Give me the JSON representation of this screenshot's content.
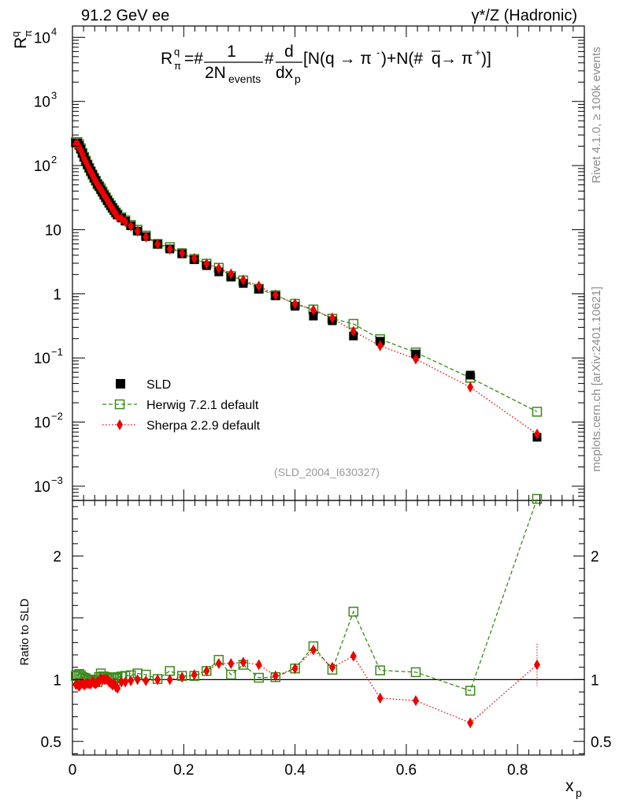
{
  "header": {
    "left": "91.2 GeV ee",
    "right": "γ*/Z (Hadronic)"
  },
  "side_labels": {
    "rivet": "Rivet 4.1.0, ≥ 100k events",
    "mcplots": "mcplots.cern.ch [arXiv:2401.10621]"
  },
  "chart_data": {
    "type": "line",
    "title": "R_π^q = 1/(2N_events) d/dx_p [N(q → π⁻)+N(q̄ → π⁺)]",
    "formula": {
      "lhs": "R",
      "lhs_sup": "q",
      "lhs_sub": "π",
      "eq": "=#",
      "num": "1",
      "den": "2N",
      "den_sub": "events",
      "mid": "#",
      "dnum": "d",
      "dden": "dx",
      "dden_sub": "p",
      "bracket": "[N(q → π",
      "sup1": "-",
      "plus": ")+N(#",
      "qbar": "q",
      "arrow2": " → π",
      "sup2": "+",
      "close": ")]"
    },
    "analysis_tag": "(SLD_2004_I630327)",
    "xlabel": "x",
    "xlabel_sub": "p",
    "ylabel": "R",
    "ylabel_sup": "q",
    "ylabel_sub": "π",
    "ratio_ylabel": "Ratio to SLD",
    "xlim": [
      0,
      0.92
    ],
    "ylim": [
      0.0006,
      15000
    ],
    "yscale": "log",
    "ratio_ylim": [
      0.39,
      2.45
    ],
    "x_ticks": [
      "0",
      "0.2",
      "0.4",
      "0.6",
      "0.8"
    ],
    "x_tick_values": [
      0,
      0.2,
      0.4,
      0.6,
      0.8
    ],
    "y_ticks": [
      {
        "value": 10000,
        "base": "10",
        "exp": "4"
      },
      {
        "value": 1000,
        "base": "10",
        "exp": "3"
      },
      {
        "value": 100,
        "base": "10",
        "exp": "2"
      },
      {
        "value": 10,
        "base": "10",
        "exp": ""
      },
      {
        "value": 1,
        "base": "1",
        "exp": ""
      },
      {
        "value": 0.1,
        "base": "10",
        "exp": "−1"
      },
      {
        "value": 0.01,
        "base": "10",
        "exp": "−2"
      },
      {
        "value": 0.001,
        "base": "10",
        "exp": "−3"
      }
    ],
    "ratio_ticks": [
      {
        "value": 2,
        "label": "2"
      },
      {
        "value": 1,
        "label": "1"
      },
      {
        "value": 0.5,
        "label": "0.5"
      }
    ],
    "legend": {
      "position": "middle-left",
      "entries": [
        "SLD",
        "Herwig 7.2.1 default",
        "Sherpa 2.2.9 default"
      ]
    },
    "x": [
      0.006,
      0.009,
      0.012,
      0.015,
      0.018,
      0.021,
      0.024,
      0.027,
      0.03,
      0.033,
      0.036,
      0.039,
      0.042,
      0.045,
      0.048,
      0.051,
      0.054,
      0.057,
      0.06,
      0.063,
      0.066,
      0.069,
      0.072,
      0.075,
      0.078,
      0.081,
      0.088,
      0.095,
      0.105,
      0.117,
      0.132,
      0.153,
      0.175,
      0.197,
      0.219,
      0.241,
      0.263,
      0.285,
      0.307,
      0.335,
      0.365,
      0.4,
      0.433,
      0.467,
      0.505,
      0.553,
      0.617,
      0.715,
      0.835
    ],
    "series": [
      {
        "name": "SLD",
        "color": "#000000",
        "marker": "filled-square",
        "values": [
          225,
          225,
          205,
          180,
          155,
          135,
          118,
          104,
          92,
          82,
          73,
          65,
          58,
          52,
          47,
          42,
          38.5,
          34.5,
          31.5,
          28.5,
          26,
          23.8,
          21.8,
          20,
          18.4,
          17,
          15.2,
          13.6,
          11.5,
          9.5,
          7.8,
          5.95,
          5.0,
          4.2,
          3.4,
          2.75,
          2.2,
          1.82,
          1.45,
          1.18,
          0.93,
          0.64,
          0.45,
          0.38,
          0.22,
          0.182,
          0.115,
          0.054,
          0.0058
        ]
      },
      {
        "name": "Herwig 7.2.1 default",
        "color": "#3a8a1a",
        "marker": "open-square",
        "line": "dashed",
        "values": [
          232,
          233,
          214,
          186,
          158,
          137,
          119,
          104,
          92,
          81,
          72,
          64,
          58,
          51,
          48,
          44,
          39.5,
          35.3,
          32,
          29,
          26.3,
          24,
          22,
          20.2,
          18.6,
          17.3,
          15.6,
          14.0,
          11.9,
          10.0,
          8.1,
          6.0,
          5.35,
          4.3,
          3.5,
          2.95,
          2.55,
          1.89,
          1.62,
          1.2,
          0.95,
          0.7,
          0.57,
          0.41,
          0.34,
          0.196,
          0.122,
          0.049,
          0.0145
        ]
      },
      {
        "name": "Sherpa 2.2.9 default",
        "color": "#ee0000",
        "marker": "filled-diamond",
        "line": "dotted",
        "values": [
          216,
          216,
          194,
          174,
          150,
          129,
          114,
          101,
          89,
          79,
          72,
          63,
          56,
          51,
          46,
          42.5,
          38.5,
          34.5,
          31.6,
          28.6,
          25.5,
          23.1,
          20.8,
          19.4,
          17.3,
          15.8,
          14.9,
          13.3,
          11.4,
          9.5,
          7.7,
          5.95,
          5.0,
          4.3,
          3.55,
          2.95,
          2.5,
          2.05,
          1.65,
          1.32,
          0.96,
          0.7,
          0.56,
          0.42,
          0.26,
          0.155,
          0.096,
          0.035,
          0.0065
        ]
      }
    ],
    "ratio_series": [
      {
        "name": "Herwig 7.2.1 default",
        "values": [
          1.03,
          1.035,
          1.045,
          1.035,
          1.02,
          1.015,
          1.01,
          1.0,
          1.0,
          0.99,
          0.99,
          0.985,
          1.0,
          0.98,
          1.02,
          1.05,
          1.025,
          1.025,
          1.02,
          1.02,
          1.01,
          1.01,
          1.01,
          1.01,
          1.01,
          1.02,
          1.025,
          1.03,
          1.035,
          1.05,
          1.04,
          1.005,
          1.07,
          1.03,
          1.03,
          1.07,
          1.16,
          1.04,
          1.12,
          1.015,
          1.02,
          1.09,
          1.27,
          1.08,
          1.55,
          1.075,
          1.06,
          0.91,
          2.5
        ]
      },
      {
        "name": "Sherpa 2.2.9 default",
        "values": [
          0.96,
          0.96,
          0.945,
          0.965,
          0.97,
          0.955,
          0.965,
          0.97,
          0.965,
          0.965,
          0.985,
          0.97,
          0.965,
          0.98,
          0.985,
          1.01,
          1.0,
          1.0,
          1.0,
          1.0,
          0.98,
          0.97,
          0.955,
          0.97,
          0.94,
          0.93,
          0.98,
          0.98,
          0.99,
          1.0,
          0.99,
          1.0,
          1.0,
          1.02,
          1.04,
          1.07,
          1.13,
          1.13,
          1.14,
          1.12,
          1.03,
          1.09,
          1.24,
          1.1,
          1.19,
          0.85,
          0.83,
          0.65,
          1.12
        ]
      }
    ]
  }
}
